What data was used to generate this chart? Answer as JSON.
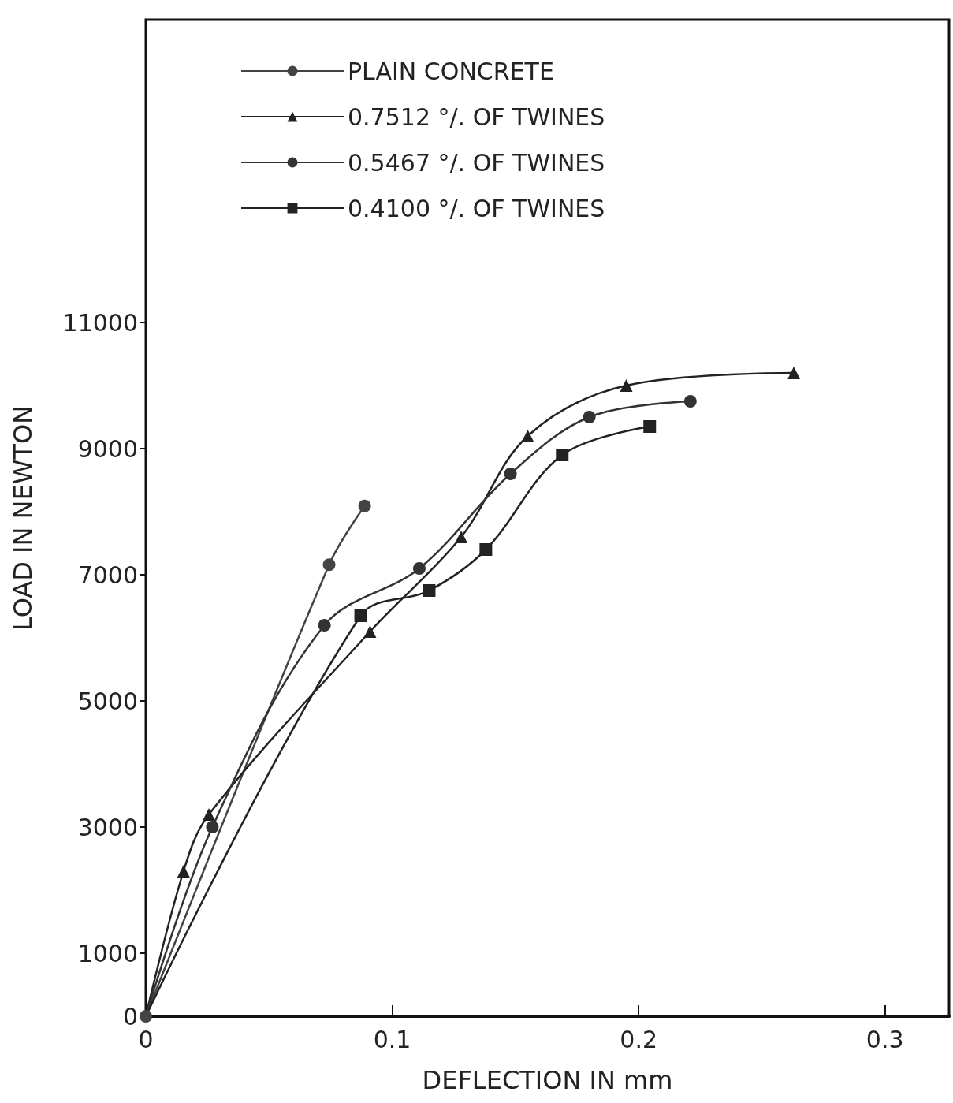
{
  "chart_data": {
    "type": "line",
    "xlabel": "DEFLECTION IN mm",
    "ylabel": "LOAD IN NEWTON",
    "xlim": [
      0,
      0.326
    ],
    "xticks": [
      0,
      0.1,
      0.2,
      0.3
    ],
    "ylim": [
      0,
      15800
    ],
    "yticks": [
      0,
      1000,
      3000,
      5000,
      7000,
      9000,
      11000
    ],
    "grid": false,
    "legend": "top left",
    "series": [
      {
        "name": "PLAIN CONCRETE",
        "color": "#444444",
        "marker": "circle",
        "x": [
          0,
          0.0744,
          0.0888
        ],
        "values": [
          0,
          7160,
          8090
        ]
      },
      {
        "name": "0.7512 °/. OF TWINES",
        "color": "#222222",
        "marker": "triangle",
        "x": [
          0,
          0.0153,
          0.0256,
          0.091,
          0.128,
          0.155,
          0.195,
          0.263
        ],
        "values": [
          0,
          2300,
          3200,
          6100,
          7600,
          9200,
          10000,
          10200
        ]
      },
      {
        "name": "0.5467 °/. OF TWINES",
        "color": "#333333",
        "marker": "circle",
        "x": [
          0,
          0.027,
          0.0725,
          0.111,
          0.148,
          0.18,
          0.221
        ],
        "values": [
          0,
          3000,
          6200,
          7100,
          8600,
          9500,
          9750
        ]
      },
      {
        "name": "0.4100 °/. OF TWINES",
        "color": "#222222",
        "marker": "square",
        "x": [
          0,
          0.0872,
          0.115,
          0.138,
          0.169,
          0.2045
        ],
        "values": [
          0,
          6350,
          6750,
          7400,
          8900,
          9350
        ]
      }
    ]
  }
}
